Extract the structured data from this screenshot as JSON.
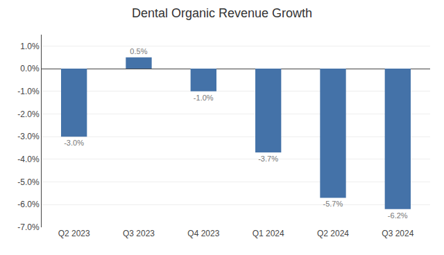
{
  "chart_data": {
    "type": "bar",
    "title": "Dental Organic Revenue Growth",
    "categories": [
      "Q2 2023",
      "Q3 2023",
      "Q4 2023",
      "Q1 2024",
      "Q2 2024",
      "Q3 2024"
    ],
    "values": [
      -3.0,
      0.5,
      -1.0,
      -3.7,
      -5.7,
      -6.2
    ],
    "value_labels": [
      "-3.0%",
      "0.5%",
      "-1.0%",
      "-3.7%",
      "-5.7%",
      "-6.2%"
    ],
    "data_labels": true,
    "color": "#4472a8",
    "ylim": [
      -7.0,
      1.5
    ],
    "yticks": [
      {
        "value": -7.0,
        "label": "-7.0%"
      },
      {
        "value": -6.0,
        "label": "-6.0%"
      },
      {
        "value": -5.0,
        "label": "-5.0%"
      },
      {
        "value": -4.0,
        "label": "-4.0%"
      },
      {
        "value": -3.0,
        "label": "-3.0%"
      },
      {
        "value": -2.0,
        "label": "-2.0%"
      },
      {
        "value": -1.0,
        "label": "-1.0%"
      },
      {
        "value": 0.0,
        "label": "0.0%"
      },
      {
        "value": 1.0,
        "label": "1.0%"
      }
    ],
    "grid": true
  }
}
